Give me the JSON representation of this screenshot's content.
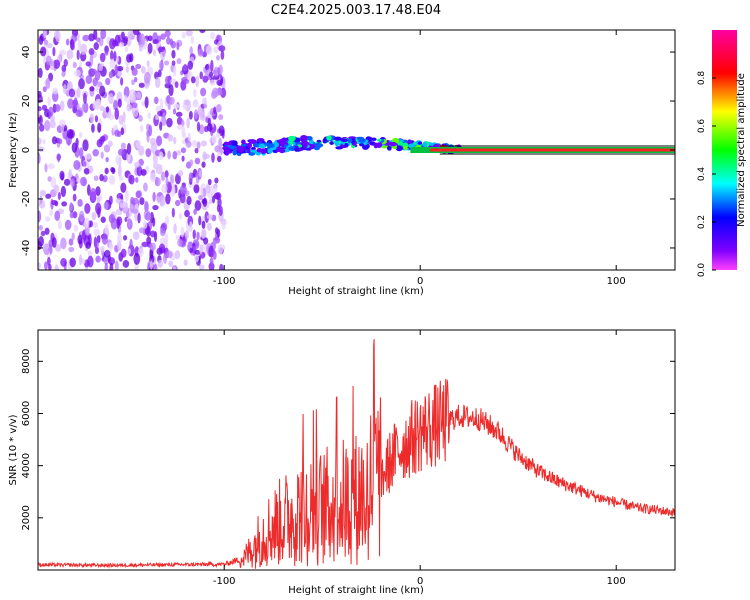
{
  "title": "C2E4.2025.003.17.48.E04",
  "chart_data": [
    {
      "type": "heatmap",
      "xlabel": "Height of straight line (km)",
      "ylabel": "Frequency (Hz)",
      "xlim": [
        -195,
        130
      ],
      "ylim": [
        -49,
        49
      ],
      "x_ticks": [
        -100,
        0,
        100
      ],
      "y_ticks": [
        -40,
        -20,
        0,
        20,
        40
      ],
      "colorbar": {
        "label": "Normalized spectral amplitude",
        "range": [
          0,
          1
        ],
        "ticks": [
          0.0,
          0.2,
          0.4,
          0.6,
          0.8
        ],
        "colors": [
          "#ff40ff",
          "#8000ff",
          "#0000ff",
          "#00ffff",
          "#00ff00",
          "#ffff00",
          "#ff0000",
          "#ff00a0"
        ]
      },
      "regions": [
        {
          "x": [
            -195,
            -100
          ],
          "description_value": "noise",
          "level": 0.15
        },
        {
          "x": [
            -100,
            20
          ],
          "signal_freq_hz": [
            0,
            3
          ],
          "level": 0.45
        },
        {
          "x": [
            20,
            130
          ],
          "signal_freq_hz": [
            0,
            0
          ],
          "level": 0.85
        }
      ]
    },
    {
      "type": "line",
      "xlabel": "Height of straight line (km)",
      "ylabel": "SNR (10 * v/v)",
      "xlim": [
        -195,
        130
      ],
      "ylim": [
        0,
        9200
      ],
      "x_ticks": [
        -100,
        0,
        100
      ],
      "y_ticks": [
        2000,
        4000,
        6000,
        8000
      ],
      "grid": false,
      "series": [
        {
          "color": "#ee2b2b",
          "x": [
            -195,
            -160,
            -130,
            -100,
            -90,
            -85,
            -80,
            -70,
            -60,
            -50,
            -40,
            -30,
            -24,
            -20,
            -15,
            -10,
            -5,
            0,
            10,
            20,
            30,
            40,
            50,
            60,
            70,
            80,
            90,
            100,
            110,
            120,
            130
          ],
          "y": [
            200,
            180,
            200,
            220,
            450,
            900,
            1400,
            1900,
            2300,
            2400,
            2600,
            2800,
            3500,
            3500,
            4200,
            4700,
            5000,
            5300,
            5600,
            5900,
            5800,
            5300,
            4400,
            3800,
            3400,
            3100,
            2800,
            2600,
            2400,
            2300,
            2200
          ]
        }
      ]
    }
  ]
}
